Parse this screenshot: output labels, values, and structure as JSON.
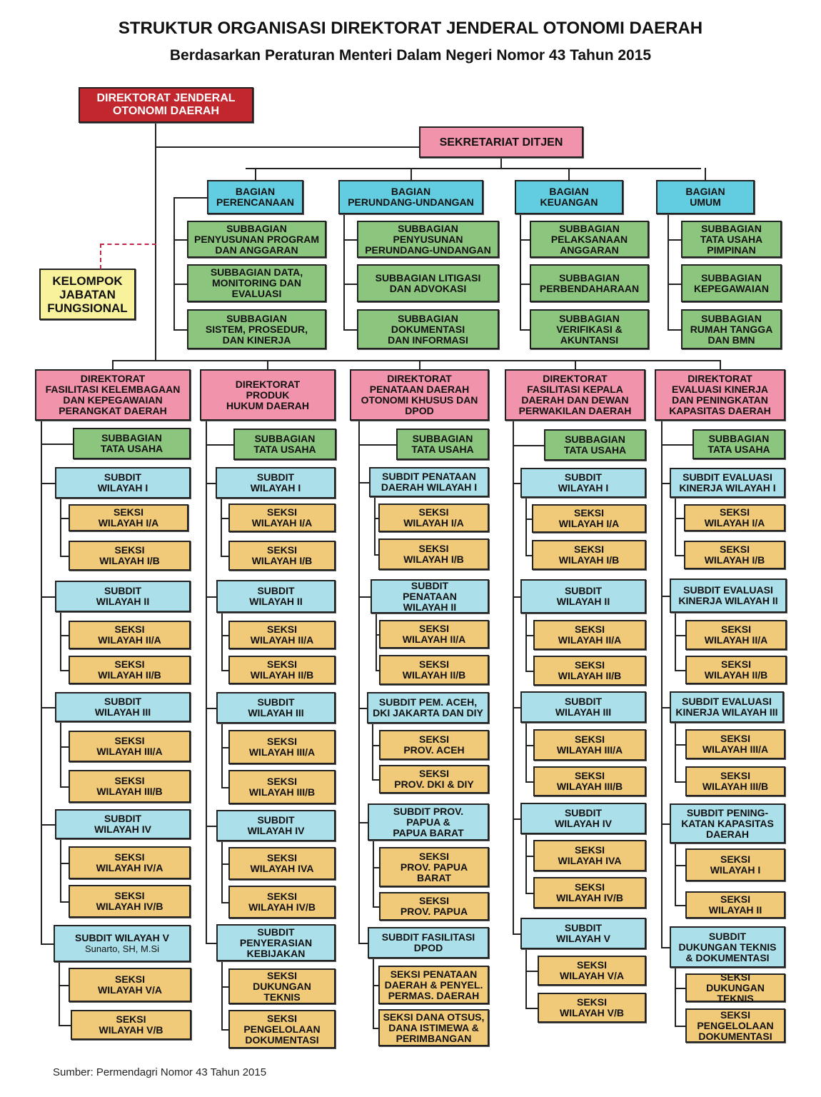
{
  "header": {
    "title": "STRUKTUR ORGANISASI DIREKTORAT JENDERAL OTONOMI DAERAH",
    "subtitle": "Berdasarkan Peraturan Menteri Dalam Negeri Nomor 43 Tahun 2015"
  },
  "colors": {
    "dirjen": "#c1272d",
    "direktorat": "#f193ab",
    "bagian": "#62cde0",
    "subbagian": "#8cc57e",
    "subdit": "#abdfea",
    "seksi": "#f0c979",
    "fungsional": "#f8f29c",
    "dashed_line": "#c0284a"
  },
  "dirjen": "DIREKTORAT JENDERAL\nOTONOMI DAERAH",
  "sekretariat": "SEKRETARIAT DITJEN",
  "fungsional": "KELOMPOK\nJABATAN\nFUNGSIONAL",
  "bagian": [
    {
      "label": "BAGIAN\nPERENCANAAN",
      "subbagian": [
        "SUBBAGIAN\nPENYUSUNAN PROGRAM\nDAN ANGGARAN",
        "SUBBAGIAN DATA,\nMONITORING DAN\nEVALUASI",
        "SUBBAGIAN\nSISTEM, PROSEDUR,\nDAN KINERJA"
      ]
    },
    {
      "label": "BAGIAN\nPERUNDANG-UNDANGAN",
      "subbagian": [
        "SUBBAGIAN\nPENYUSUNAN\nPERUNDANG-UNDANGAN",
        "SUBBAGIAN LITIGASI\nDAN ADVOKASI",
        "SUBBAGIAN\nDOKUMENTASI\nDAN INFORMASI"
      ]
    },
    {
      "label": "BAGIAN\nKEUANGAN",
      "subbagian": [
        "SUBBAGIAN\nPELAKSANAAN\nANGGARAN",
        "SUBBAGIAN\nPERBENDAHARAAN",
        "SUBBAGIAN\nVERIFIKASI &\nAKUNTANSI"
      ]
    },
    {
      "label": "BAGIAN\nUMUM",
      "subbagian": [
        "SUBBAGIAN\nTATA USAHA\nPIMPINAN",
        "SUBBAGIAN\nKEPEGAWAIAN",
        "SUBBAGIAN\nRUMAH TANGGA\nDAN BMN"
      ]
    }
  ],
  "direktorat": [
    {
      "label": "DIREKTORAT\nFASILITASI KELEMBAGAAN\nDAN KEPEGAWAIAN\nPERANGKAT DAERAH",
      "tata_usaha": "SUBBAGIAN\nTATA USAHA",
      "subdit": [
        {
          "label": "SUBDIT\nWILAYAH I",
          "seksi": [
            "SEKSI\nWILAYAH I/A",
            "SEKSI\nWILAYAH I/B"
          ]
        },
        {
          "label": "SUBDIT\nWILAYAH II",
          "seksi": [
            "SEKSI\nWILAYAH II/A",
            "SEKSI\nWILAYAH II/B"
          ]
        },
        {
          "label": "SUBDIT\nWILAYAH III",
          "seksi": [
            "SEKSI\nWILAYAH III/A",
            "SEKSI\nWILAYAH III/B"
          ]
        },
        {
          "label": "SUBDIT\nWILAYAH IV",
          "seksi": [
            "SEKSI\nWILAYAH IV/A",
            "SEKSI\nWILAYAH IV/B"
          ]
        },
        {
          "label": "SUBDIT WILAYAH V",
          "official": "Sunarto, SH, M.Si",
          "seksi": [
            "SEKSI\nWILAYAH V/A",
            "SEKSI\nWILAYAH V/B"
          ]
        }
      ]
    },
    {
      "label": "DIREKTORAT\nPRODUK\nHUKUM DAERAH",
      "tata_usaha": "SUBBAGIAN\nTATA USAHA",
      "subdit": [
        {
          "label": "SUBDIT\nWILAYAH I",
          "seksi": [
            "SEKSI\nWILAYAH I/A",
            "SEKSI\nWILAYAH I/B"
          ]
        },
        {
          "label": "SUBDIT\nWILAYAH II",
          "seksi": [
            "SEKSI\nWILAYAH II/A",
            "SEKSI\nWILAYAH II/B"
          ]
        },
        {
          "label": "SUBDIT\nWILAYAH III",
          "seksi": [
            "SEKSI\nWILAYAH III/A",
            "SEKSI\nWILAYAH III/B"
          ]
        },
        {
          "label": "SUBDIT\nWILAYAH IV",
          "seksi": [
            "SEKSI\nWILAYAH IVA",
            "SEKSI\nWILAYAH IV/B"
          ]
        },
        {
          "label": "SUBDIT\nPENYERASIAN\nKEBIJAKAN",
          "seksi": [
            "SEKSI\nDUKUNGAN\nTEKNIS",
            "SEKSI\nPENGELOLAAN\nDOKUMENTASI"
          ]
        }
      ]
    },
    {
      "label": "DIREKTORAT\nPENATAAN DAERAH\nOTONOMI KHUSUS DAN\nDPOD",
      "tata_usaha": "SUBBAGIAN\nTATA USAHA",
      "subdit": [
        {
          "label": "SUBDIT PENATAAN\nDAERAH WILAYAH I",
          "seksi": [
            "SEKSI\nWILAYAH I/A",
            "SEKSI\nWILAYAH I/B"
          ]
        },
        {
          "label": "SUBDIT\nPENATAAN\nWILAYAH II",
          "seksi": [
            "SEKSI\nWILAYAH II/A",
            "SEKSI\nWILAYAH II/B"
          ]
        },
        {
          "label": "SUBDIT PEM. ACEH,\nDKI JAKARTA DAN DIY",
          "seksi": [
            "SEKSI\nPROV. ACEH",
            "SEKSI\nPROV. DKI & DIY"
          ]
        },
        {
          "label": "SUBDIT PROV.\nPAPUA &\nPAPUA BARAT",
          "seksi": [
            "SEKSI\nPROV. PAPUA\nBARAT",
            "SEKSI\nPROV. PAPUA"
          ]
        },
        {
          "label": "SUBDIT FASILITASI\nDPOD",
          "seksi": [
            "SEKSI PENATAAN\nDAERAH & PENYEL.\nPERMAS. DAERAH",
            "SEKSI DANA OTSUS,\nDANA ISTIMEWA &\nPERIMBANGAN"
          ]
        }
      ]
    },
    {
      "label": "DIREKTORAT\nFASILITASI KEPALA\nDAERAH DAN DEWAN\nPERWAKILAN DAERAH",
      "tata_usaha": "SUBBAGIAN\nTATA USAHA",
      "subdit": [
        {
          "label": "SUBDIT\nWILAYAH I",
          "seksi": [
            "SEKSI\nWILAYAH I/A",
            "SEKSI\nWILAYAH I/B"
          ]
        },
        {
          "label": "SUBDIT\nWILAYAH II",
          "seksi": [
            "SEKSI\nWILAYAH II/A",
            "SEKSI\nWILAYAH II/B"
          ]
        },
        {
          "label": "SUBDIT\nWILAYAH III",
          "seksi": [
            "SEKSI\nWILAYAH III/A",
            "SEKSI\nWILAYAH III/B"
          ]
        },
        {
          "label": "SUBDIT\nWILAYAH IV",
          "seksi": [
            "SEKSI\nWILAYAH IVA",
            "SEKSI\nWILAYAH IV/B"
          ]
        },
        {
          "label": "SUBDIT\nWILAYAH V",
          "seksi": [
            "SEKSI\nWILAYAH V/A",
            "SEKSI\nWILAYAH V/B"
          ]
        }
      ]
    },
    {
      "label": "DIREKTORAT\nEVALUASI KINERJA\nDAN PENINGKATAN\nKAPASITAS DAERAH",
      "tata_usaha": "SUBBAGIAN\nTATA USAHA",
      "subdit": [
        {
          "label": "SUBDIT EVALUASI\nKINERJA WILAYAH I",
          "seksi": [
            "SEKSI\nWILAYAH I/A",
            "SEKSI\nWILAYAH I/B"
          ]
        },
        {
          "label": "SUBDIT EVALUASI\nKINERJA WILAYAH II",
          "seksi": [
            "SEKSI\nWILAYAH II/A",
            "SEKSI\nWILAYAH II/B"
          ]
        },
        {
          "label": "SUBDIT EVALUASI\nKINERJA WILAYAH III",
          "seksi": [
            "SEKSI\nWILAYAH III/A",
            "SEKSI\nWILAYAH III/B"
          ]
        },
        {
          "label": "SUBDIT PENING-\nKATAN KAPASITAS\nDAERAH",
          "seksi": [
            "SEKSI\nWILAYAH I",
            "SEKSI\nWILAYAH II"
          ]
        },
        {
          "label": "SUBDIT\nDUKUNGAN TEKNIS\n& DOKUMENTASI",
          "seksi": [
            "SEKSI\nDUKUNGAN TEKNIS",
            "SEKSI\nPENGELOLAAN\nDOKUMENTASI"
          ]
        }
      ]
    }
  ],
  "source": "Sumber: Permendagri Nomor 43 Tahun 2015"
}
